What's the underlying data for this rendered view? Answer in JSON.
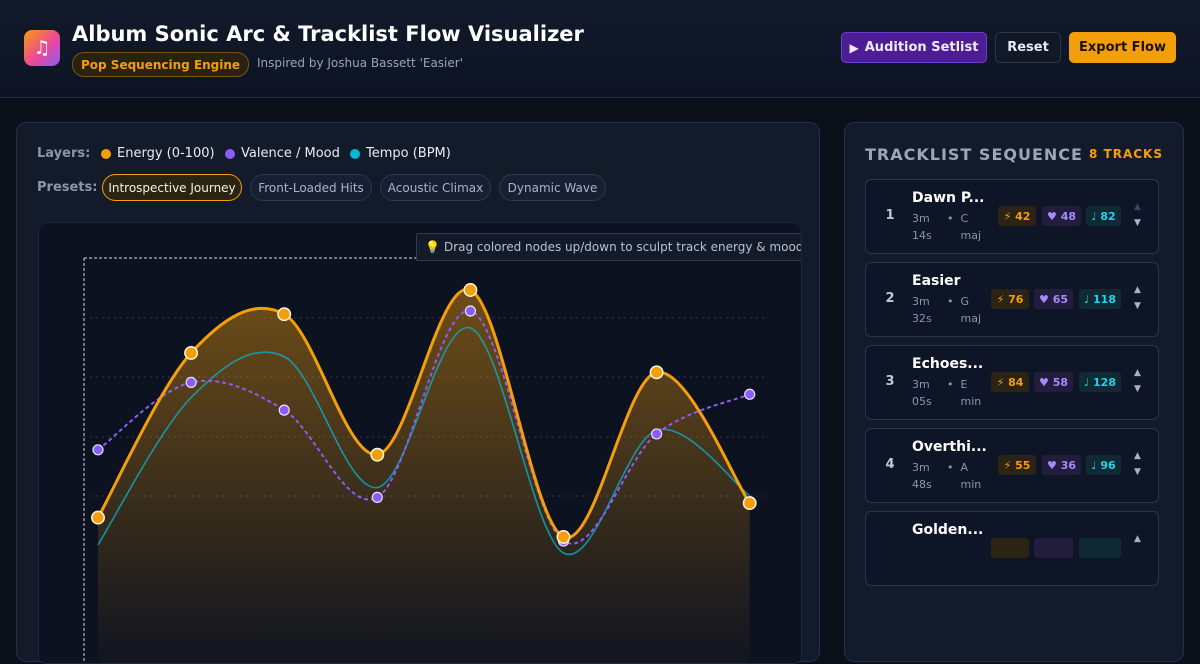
{
  "header": {
    "logo_icon": "music-note-icon",
    "logo_glyph": "♫",
    "title": "Album Sonic Arc & Tracklist Flow Visualizer",
    "engine_badge": "Pop Sequencing Engine",
    "inspired": "Inspired by Joshua Bassett 'Easier'",
    "buttons": {
      "audition": "Audition Setlist",
      "audition_icon": "▶",
      "reset": "Reset",
      "export": "Export Flow"
    }
  },
  "controls": {
    "layers_label": "Layers:",
    "layers": [
      {
        "label": "Energy (0-100)",
        "color": "#f59e0b"
      },
      {
        "label": "Valence / Mood",
        "color": "#8b5cf6"
      },
      {
        "label": "Tempo (BPM)",
        "color": "#06b6d4"
      }
    ],
    "presets_label": "Presets:",
    "presets": [
      {
        "label": "Introspective Journey",
        "active": true
      },
      {
        "label": "Front-Loaded Hits",
        "active": false
      },
      {
        "label": "Acoustic Climax",
        "active": false
      },
      {
        "label": "Dynamic Wave",
        "active": false
      }
    ]
  },
  "chart": {
    "hint_icon": "💡",
    "hint": "Drag colored nodes up/down to sculpt track energy & mood"
  },
  "chart_data": {
    "type": "line",
    "x": [
      1,
      2,
      3,
      4,
      5,
      6,
      7,
      8
    ],
    "ylim": [
      0,
      100
    ],
    "grid": true,
    "series": [
      {
        "name": "Energy (0-100)",
        "color": "#f59e0b",
        "values": [
          42,
          76,
          84,
          55,
          89,
          38,
          72,
          45
        ]
      },
      {
        "name": "Valence / Mood",
        "color": "#8b5cf6",
        "values": [
          48,
          65,
          58,
          36,
          83,
          25,
          52,
          62
        ]
      },
      {
        "name": "Tempo (BPM)",
        "color": "#06b6d4",
        "values": [
          82,
          118,
          128,
          96,
          135,
          80,
          110,
          94
        ]
      }
    ]
  },
  "tracklist": {
    "title": "TRACKLIST SEQUENCE",
    "count": "8 TRACKS",
    "tracks": [
      {
        "num": "1",
        "name": "Dawn P...",
        "duration": "3m 14s",
        "key": "C maj",
        "energy": "⚡ 42",
        "valence": "♥ 48",
        "tempo": "♩ 82"
      },
      {
        "num": "2",
        "name": "Easier",
        "duration": "3m 32s",
        "key": "G maj",
        "energy": "⚡ 76",
        "valence": "♥ 65",
        "tempo": "♩ 118"
      },
      {
        "num": "3",
        "name": "Echoes...",
        "duration": "3m 05s",
        "key": "E min",
        "energy": "⚡ 84",
        "valence": "♥ 58",
        "tempo": "♩ 128"
      },
      {
        "num": "4",
        "name": "Overthi...",
        "duration": "3m 48s",
        "key": "A min",
        "energy": "⚡ 55",
        "valence": "♥ 36",
        "tempo": "♩ 96"
      },
      {
        "num": "",
        "name": "Golden...",
        "duration": "",
        "key": "",
        "energy": "",
        "valence": "",
        "tempo": ""
      }
    ]
  }
}
